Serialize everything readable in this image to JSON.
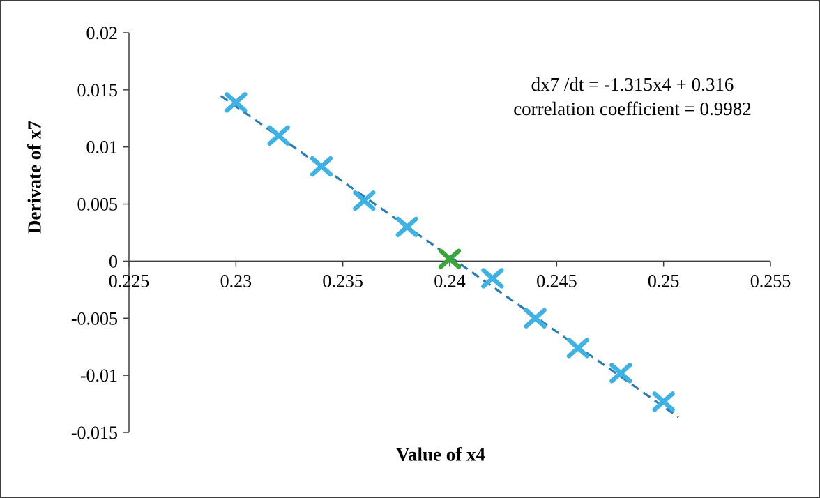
{
  "frame": {
    "background": "#ffffff",
    "border_color": "#3f3f3f"
  },
  "chart_data": {
    "type": "scatter",
    "title": "",
    "xlabel": "Value of x4",
    "ylabel": "Derivate of x7",
    "xlim": [
      0.225,
      0.255
    ],
    "ylim": [
      -0.015,
      0.02
    ],
    "grid": "off",
    "legend": "none",
    "x_ticks": [
      0.225,
      0.23,
      0.235,
      0.24,
      0.245,
      0.25,
      0.255
    ],
    "x_tick_labels": [
      "0.225",
      "0.23",
      "0.235",
      "0.24",
      "0.245",
      "0.25",
      "0.255"
    ],
    "y_ticks": [
      0.02,
      0.015,
      0.01,
      0.005,
      0,
      -0.005,
      -0.01,
      -0.015
    ],
    "y_tick_labels": [
      "0.02",
      "0.015",
      "0.01",
      "0.005",
      "0",
      "-0.005",
      "-0.01",
      "-0.015"
    ],
    "axis_color": "#3f3f3f",
    "marker_color": "#3fb1e3",
    "equilibrium_color": "#3aa53a",
    "series_points": [
      [
        0.23,
        0.0139
      ],
      [
        0.232,
        0.011
      ],
      [
        0.234,
        0.0083
      ],
      [
        0.236,
        0.0053
      ],
      [
        0.238,
        0.003
      ],
      [
        0.242,
        -0.0015
      ],
      [
        0.244,
        -0.005
      ],
      [
        0.246,
        -0.0076
      ],
      [
        0.248,
        -0.0098
      ],
      [
        0.25,
        -0.0123
      ]
    ],
    "equilibrium_point": [
      0.24,
      0.0002
    ],
    "trendline": {
      "slope": -1.315,
      "intercept": 0.316,
      "x_start": 0.2293,
      "x_end": 0.2507,
      "color": "#2b7cb0",
      "dash": "12 8",
      "equation": "dx7 /dt = -1.315x4 + 0.316",
      "correlation": "correlation coefficient = 0.9982"
    },
    "annotation": {
      "line1": "dx7 /dt = -1.315x4 + 0.316",
      "line2": "correlation coefficient = 0.9982"
    }
  }
}
